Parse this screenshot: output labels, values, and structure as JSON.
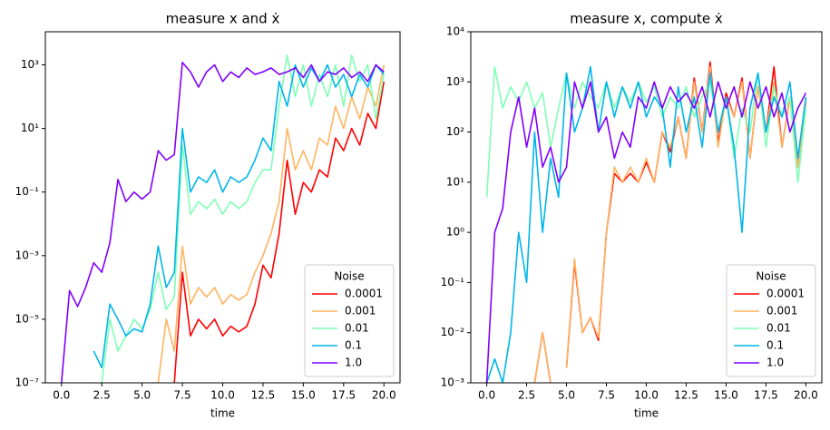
{
  "chart_data": [
    {
      "type": "line",
      "title": "measure x and ẋ",
      "x_label": "time",
      "yscale": "log",
      "legend_title": "Noise",
      "legend_loc": "lower right",
      "xlim": [
        -1,
        21
      ],
      "ylim": [
        1e-07,
        11000
      ],
      "xticks": [
        {
          "value": 0,
          "label": "0.0"
        },
        2.5,
        {
          "value": 5,
          "label": "5.0"
        },
        7.5,
        {
          "value": 10,
          "label": "10.0"
        },
        12.5,
        {
          "value": 15,
          "label": "15.0"
        },
        17.5,
        {
          "value": 20,
          "label": "20.0"
        }
      ],
      "yticks": [
        {
          "value": 1e-07,
          "label": "10⁻⁷"
        },
        {
          "value": 1e-05,
          "label": "10⁻⁵"
        },
        {
          "value": 0.001,
          "label": "10⁻³"
        },
        {
          "value": 0.1,
          "label": "10⁻¹"
        },
        {
          "value": 10,
          "label": "10¹"
        },
        {
          "value": 1000,
          "label": "10³"
        }
      ],
      "x": [
        0,
        0.5,
        1,
        1.5,
        2,
        2.5,
        3,
        3.5,
        4,
        4.5,
        5,
        5.5,
        6,
        6.5,
        7,
        7.5,
        8,
        8.5,
        9,
        9.5,
        10,
        10.5,
        11,
        11.5,
        12,
        12.5,
        13,
        13.5,
        14,
        14.5,
        15,
        15.5,
        16,
        16.5,
        17,
        17.5,
        18,
        18.5,
        19,
        19.5,
        20
      ],
      "series": [
        {
          "name": "0.0001",
          "color": "#ff0000",
          "values": [
            null,
            null,
            null,
            null,
            null,
            null,
            null,
            null,
            null,
            null,
            null,
            null,
            null,
            null,
            1e-07,
            0.0003,
            3e-06,
            1e-05,
            5e-06,
            1e-05,
            3e-06,
            6e-06,
            4e-06,
            6e-06,
            3e-05,
            0.0005,
            0.0002,
            0.005,
            1,
            0.02,
            0.2,
            0.1,
            0.5,
            0.3,
            5,
            2,
            10,
            3,
            30,
            10,
            300
          ]
        },
        {
          "name": "0.001",
          "color": "#ffb360",
          "values": [
            null,
            null,
            null,
            null,
            null,
            null,
            null,
            null,
            null,
            null,
            null,
            null,
            1e-07,
            1e-05,
            1e-06,
            0.002,
            3e-05,
            0.0001,
            5e-05,
            0.0001,
            3e-05,
            6e-05,
            4e-05,
            6e-05,
            0.0003,
            0.001,
            0.005,
            0.05,
            10,
            0.5,
            2,
            0.5,
            5,
            3,
            50,
            10,
            100,
            20,
            200,
            50,
            1000
          ]
        },
        {
          "name": "0.01",
          "color": "#80ffb4",
          "values": [
            null,
            null,
            null,
            null,
            null,
            1e-07,
            1e-05,
            1e-06,
            3e-06,
            1e-05,
            5e-06,
            2e-05,
            0.0003,
            2e-05,
            5e-05,
            3,
            0.02,
            0.05,
            0.03,
            0.06,
            0.02,
            0.05,
            0.03,
            0.05,
            0.2,
            0.5,
            0.5,
            50,
            2000,
            100,
            1000,
            50,
            500,
            100,
            1000,
            50,
            2000,
            300,
            1000,
            20,
            500
          ]
        },
        {
          "name": "0.1",
          "color": "#00b5eb",
          "values": [
            null,
            null,
            null,
            null,
            1e-06,
            3e-07,
            3e-05,
            1e-05,
            3e-06,
            5e-06,
            4e-06,
            3e-05,
            0.002,
            0.0001,
            0.0003,
            10,
            0.1,
            0.3,
            0.2,
            0.5,
            0.1,
            0.3,
            0.2,
            0.3,
            1,
            5,
            2,
            300,
            50,
            1000,
            200,
            800,
            300,
            1000,
            200,
            500,
            100,
            500,
            200,
            1000,
            500
          ]
        },
        {
          "name": "1.0",
          "color": "#8000ff",
          "values": [
            1e-07,
            8e-05,
            2.5e-05,
            0.0001,
            0.0006,
            0.0003,
            0.0025,
            0.25,
            0.05,
            0.1,
            0.06,
            0.1,
            2,
            1,
            1.5,
            1200,
            600,
            200,
            600,
            1000,
            300,
            600,
            400,
            800,
            500,
            600,
            800,
            500,
            600,
            800,
            400,
            1000,
            300,
            600,
            500,
            800,
            400,
            600,
            300,
            1000,
            600
          ]
        }
      ]
    },
    {
      "type": "line",
      "title": "measure x, compute ẋ",
      "x_label": "time",
      "yscale": "log",
      "legend_title": "Noise",
      "legend_loc": "lower right",
      "xlim": [
        -1,
        21
      ],
      "ylim": [
        0.001,
        10000
      ],
      "xticks": [
        {
          "value": 0,
          "label": "0.0"
        },
        2.5,
        {
          "value": 5,
          "label": "5.0"
        },
        7.5,
        {
          "value": 10,
          "label": "10.0"
        },
        12.5,
        {
          "value": 15,
          "label": "15.0"
        },
        17.5,
        {
          "value": 20,
          "label": "20.0"
        }
      ],
      "yticks": [
        {
          "value": 0.001,
          "label": "10⁻³"
        },
        {
          "value": 0.01,
          "label": "10⁻²"
        },
        {
          "value": 0.1,
          "label": "10⁻¹"
        },
        {
          "value": 1,
          "label": "10⁰"
        },
        {
          "value": 10,
          "label": "10¹"
        },
        {
          "value": 100,
          "label": "10²"
        },
        {
          "value": 1000,
          "label": "10³"
        },
        {
          "value": 10000,
          "label": "10⁴"
        }
      ],
      "x": [
        0,
        0.5,
        1,
        1.5,
        2,
        2.5,
        3,
        3.5,
        4,
        4.5,
        5,
        5.5,
        6,
        6.5,
        7,
        7.5,
        8,
        8.5,
        9,
        9.5,
        10,
        10.5,
        11,
        11.5,
        12,
        12.5,
        13,
        13.5,
        14,
        14.5,
        15,
        15.5,
        16,
        16.5,
        17,
        17.5,
        18,
        18.5,
        19,
        19.5,
        20
      ],
      "series": [
        {
          "name": "0.0001",
          "color": "#ff0000",
          "values": [
            null,
            0.001,
            null,
            null,
            null,
            null,
            0.001,
            0.01,
            0.001,
            null,
            0.002,
            0.25,
            0.01,
            0.02,
            0.007,
            1,
            15,
            10,
            15,
            10,
            25,
            10,
            100,
            40,
            200,
            30,
            1200,
            100,
            2500,
            60,
            600,
            200,
            1200,
            30,
            800,
            100,
            2000,
            50,
            500,
            20,
            400
          ]
        },
        {
          "name": "0.001",
          "color": "#ffb360",
          "values": [
            null,
            0.001,
            null,
            null,
            null,
            null,
            0.001,
            0.01,
            0.001,
            null,
            0.002,
            0.3,
            0.01,
            0.02,
            0.008,
            1,
            20,
            10,
            20,
            10,
            30,
            10,
            100,
            50,
            200,
            30,
            1000,
            100,
            2000,
            50,
            500,
            200,
            1000,
            30,
            800,
            100,
            1000,
            50,
            500,
            20,
            400
          ]
        },
        {
          "name": "0.01",
          "color": "#80ffb4",
          "values": [
            5,
            2000,
            300,
            800,
            400,
            1000,
            300,
            600,
            50,
            300,
            1500,
            300,
            1000,
            500,
            300,
            1000,
            300,
            800,
            400,
            1000,
            400,
            800,
            200,
            500,
            300,
            800,
            200,
            500,
            1000,
            100,
            500,
            30,
            300,
            100,
            1500,
            50,
            800,
            200,
            500,
            10,
            300
          ]
        },
        {
          "name": "0.1",
          "color": "#00b5eb",
          "values": [
            0.001,
            0.003,
            0.001,
            0.01,
            1,
            0.1,
            100,
            1,
            30,
            5,
            1500,
            100,
            300,
            2000,
            100,
            1000,
            200,
            800,
            300,
            1000,
            200,
            500,
            300,
            20,
            800,
            100,
            500,
            50,
            1500,
            100,
            500,
            50,
            1,
            300,
            1500,
            100,
            500,
            200,
            1000,
            30,
            500
          ]
        },
        {
          "name": "1.0",
          "color": "#8000ff",
          "values": [
            0.001,
            1,
            3,
            100,
            500,
            50,
            300,
            20,
            50,
            10,
            20,
            1000,
            300,
            1000,
            100,
            200,
            30,
            100,
            50,
            500,
            300,
            1000,
            300,
            800,
            400,
            600,
            300,
            800,
            200,
            1000,
            300,
            800,
            200,
            1000,
            300,
            800,
            200,
            600,
            100,
            300,
            600
          ]
        }
      ]
    }
  ]
}
